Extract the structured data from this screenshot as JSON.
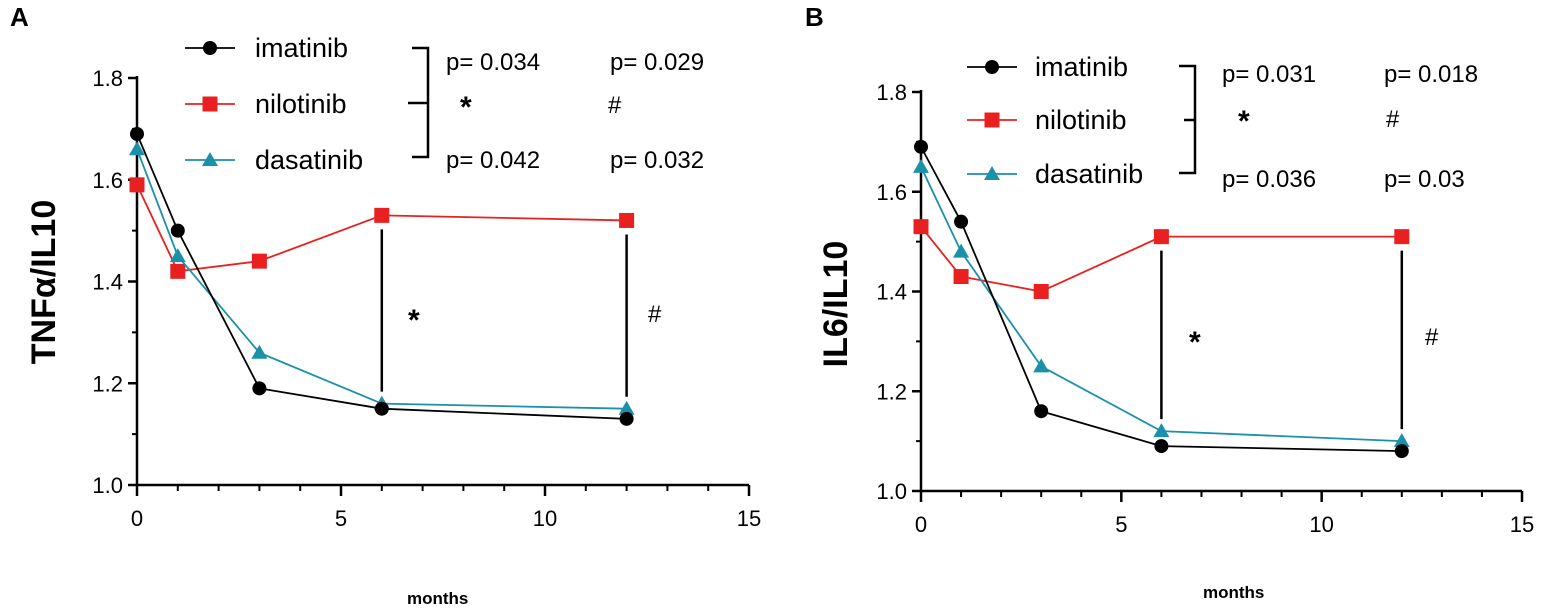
{
  "chart_data": [
    {
      "type": "line",
      "panel_label": "A",
      "title": "",
      "xlabel": "months",
      "ylabel": "TNFα/IL10",
      "xlim": [
        0,
        15
      ],
      "ylim": [
        1.0,
        1.8
      ],
      "xticks": [
        0,
        5,
        10,
        15
      ],
      "yticks": [
        1.0,
        1.2,
        1.4,
        1.6,
        1.8
      ],
      "ytick_labels": [
        "1.0",
        "1.2",
        "1.4",
        "1.6",
        "1.8"
      ],
      "x": [
        0,
        1,
        3,
        6,
        12
      ],
      "series": [
        {
          "name": "imatinib",
          "color": "#000000",
          "marker": "circle",
          "values": [
            1.69,
            1.5,
            1.19,
            1.15,
            1.13
          ]
        },
        {
          "name": "nilotinib",
          "color": "#e8201f",
          "marker": "square",
          "values": [
            1.59,
            1.42,
            1.44,
            1.53,
            1.52
          ]
        },
        {
          "name": "dasatinib",
          "color": "#1a91a8",
          "marker": "triangle",
          "values": [
            1.66,
            1.45,
            1.26,
            1.16,
            1.15
          ]
        }
      ],
      "pvalues": {
        "top_left": "p= 0.034",
        "top_right": "p= 0.029",
        "bottom_left": "p= 0.042",
        "bottom_right": "p= 0.032"
      },
      "legend_symbols": {
        "left": "*",
        "right": "#"
      },
      "annotations": [
        {
          "x": 6,
          "y_from": 1.16,
          "y_to": 1.53,
          "symbol": "*"
        },
        {
          "x": 12,
          "y_from": 1.15,
          "y_to": 1.52,
          "symbol": "#"
        }
      ]
    },
    {
      "type": "line",
      "panel_label": "B",
      "title": "",
      "xlabel": "months",
      "ylabel": "IL6/IL10",
      "xlim": [
        0,
        15
      ],
      "ylim": [
        1.0,
        1.8
      ],
      "xticks": [
        0,
        5,
        10,
        15
      ],
      "yticks": [
        1.0,
        1.2,
        1.4,
        1.6,
        1.8
      ],
      "ytick_labels": [
        "1.0",
        "1.2",
        "1.4",
        "1.6",
        "1.8"
      ],
      "x": [
        0,
        1,
        3,
        6,
        12
      ],
      "series": [
        {
          "name": "imatinib",
          "color": "#000000",
          "marker": "circle",
          "values": [
            1.69,
            1.54,
            1.16,
            1.09,
            1.08
          ]
        },
        {
          "name": "nilotinib",
          "color": "#e8201f",
          "marker": "square",
          "values": [
            1.53,
            1.43,
            1.4,
            1.51,
            1.51
          ]
        },
        {
          "name": "dasatinib",
          "color": "#1a91a8",
          "marker": "triangle",
          "values": [
            1.65,
            1.48,
            1.25,
            1.12,
            1.1
          ]
        }
      ],
      "pvalues": {
        "top_left": "p= 0.031",
        "top_right": "p= 0.018",
        "bottom_left": "p= 0.036",
        "bottom_right": "p= 0.03"
      },
      "legend_symbols": {
        "left": "*",
        "right": "#"
      },
      "annotations": [
        {
          "x": 6,
          "y_from": 1.12,
          "y_to": 1.51,
          "symbol": "*"
        },
        {
          "x": 12,
          "y_from": 1.1,
          "y_to": 1.51,
          "symbol": "#"
        }
      ]
    }
  ]
}
